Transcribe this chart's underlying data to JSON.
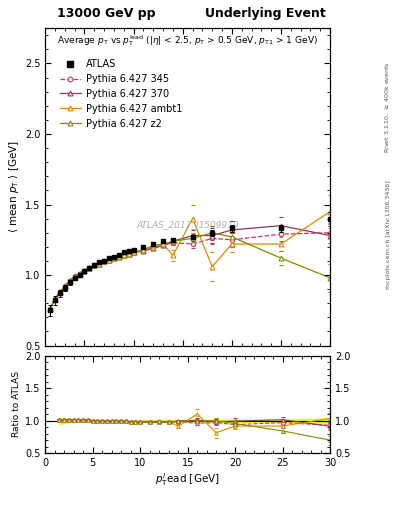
{
  "title_left": "13000 GeV pp",
  "title_right": "Underlying Event",
  "ylabel_main": "<mean p_T> [GeV]",
  "ylabel_ratio": "Ratio to ATLAS",
  "xlabel": "p_{T}^{lead} [GeV]",
  "watermark": "ATLAS_2017_I1509919",
  "ylim_main": [
    0.5,
    2.75
  ],
  "ylim_ratio": [
    0.5,
    2.0
  ],
  "yticks_main": [
    0.5,
    1.0,
    1.5,
    2.0,
    2.5
  ],
  "yticks_ratio": [
    0.5,
    1.0,
    1.5,
    2.0
  ],
  "xlim": [
    1,
    30
  ],
  "xticks": [
    0,
    5,
    10,
    15,
    20,
    25,
    30
  ],
  "atlas_x": [
    1.5,
    2.0,
    2.5,
    3.0,
    3.5,
    4.0,
    4.5,
    5.0,
    5.5,
    6.0,
    6.5,
    7.0,
    7.5,
    8.0,
    8.5,
    9.0,
    9.5,
    10.0,
    11.0,
    12.0,
    13.0,
    14.0,
    16.0,
    18.0,
    20.0,
    25.0,
    30.0
  ],
  "atlas_y": [
    0.75,
    0.82,
    0.87,
    0.91,
    0.95,
    0.98,
    1.0,
    1.03,
    1.05,
    1.07,
    1.09,
    1.1,
    1.12,
    1.13,
    1.14,
    1.16,
    1.17,
    1.18,
    1.2,
    1.22,
    1.24,
    1.25,
    1.27,
    1.3,
    1.33,
    1.33,
    1.4
  ],
  "atlas_yerr": [
    0.04,
    0.03,
    0.025,
    0.022,
    0.018,
    0.015,
    0.013,
    0.012,
    0.012,
    0.012,
    0.012,
    0.012,
    0.012,
    0.012,
    0.012,
    0.012,
    0.012,
    0.012,
    0.013,
    0.013,
    0.014,
    0.015,
    0.016,
    0.022,
    0.022,
    0.028,
    0.05
  ],
  "p345_x": [
    1.5,
    2.0,
    2.5,
    3.0,
    3.5,
    4.0,
    4.5,
    5.0,
    5.5,
    6.0,
    6.5,
    7.0,
    7.5,
    8.0,
    8.5,
    9.0,
    9.5,
    10.0,
    11.0,
    12.0,
    13.0,
    14.0,
    16.0,
    18.0,
    20.0,
    25.0,
    30.0
  ],
  "p345_y": [
    0.76,
    0.83,
    0.88,
    0.92,
    0.96,
    0.99,
    1.01,
    1.03,
    1.05,
    1.07,
    1.08,
    1.1,
    1.11,
    1.12,
    1.13,
    1.14,
    1.15,
    1.16,
    1.18,
    1.19,
    1.21,
    1.23,
    1.22,
    1.26,
    1.25,
    1.29,
    1.3
  ],
  "p370_x": [
    1.5,
    2.0,
    2.5,
    3.0,
    3.5,
    4.0,
    4.5,
    5.0,
    5.5,
    6.0,
    6.5,
    7.0,
    7.5,
    8.0,
    8.5,
    9.0,
    9.5,
    10.0,
    11.0,
    12.0,
    13.0,
    14.0,
    16.0,
    18.0,
    20.0,
    25.0,
    30.0
  ],
  "p370_y": [
    0.76,
    0.83,
    0.88,
    0.92,
    0.96,
    0.99,
    1.01,
    1.03,
    1.05,
    1.07,
    1.08,
    1.1,
    1.11,
    1.12,
    1.13,
    1.14,
    1.15,
    1.16,
    1.17,
    1.19,
    1.21,
    1.24,
    1.28,
    1.28,
    1.32,
    1.35,
    1.28
  ],
  "pambt1_x": [
    1.5,
    2.0,
    2.5,
    3.0,
    3.5,
    4.0,
    4.5,
    5.0,
    5.5,
    6.0,
    6.5,
    7.0,
    7.5,
    8.0,
    8.5,
    9.0,
    9.5,
    10.0,
    11.0,
    12.0,
    13.0,
    14.0,
    16.0,
    18.0,
    20.0,
    25.0,
    30.0
  ],
  "pambt1_y": [
    0.76,
    0.83,
    0.88,
    0.92,
    0.96,
    0.99,
    1.01,
    1.03,
    1.05,
    1.07,
    1.08,
    1.1,
    1.11,
    1.12,
    1.13,
    1.14,
    1.15,
    1.16,
    1.18,
    1.2,
    1.22,
    1.14,
    1.4,
    1.06,
    1.22,
    1.22,
    1.45
  ],
  "pambt1_yerr": [
    0.01,
    0.01,
    0.01,
    0.01,
    0.01,
    0.01,
    0.01,
    0.01,
    0.01,
    0.01,
    0.01,
    0.01,
    0.01,
    0.01,
    0.01,
    0.01,
    0.01,
    0.01,
    0.01,
    0.01,
    0.01,
    0.04,
    0.1,
    0.1,
    0.06,
    0.05,
    0.12
  ],
  "pz2_x": [
    1.5,
    2.0,
    2.5,
    3.0,
    3.5,
    4.0,
    4.5,
    5.0,
    5.5,
    6.0,
    6.5,
    7.0,
    7.5,
    8.0,
    8.5,
    9.0,
    9.5,
    10.0,
    11.0,
    12.0,
    13.0,
    14.0,
    16.0,
    18.0,
    20.0,
    25.0,
    30.0
  ],
  "pz2_y": [
    0.76,
    0.83,
    0.88,
    0.92,
    0.96,
    0.99,
    1.01,
    1.03,
    1.05,
    1.07,
    1.08,
    1.1,
    1.11,
    1.12,
    1.13,
    1.14,
    1.15,
    1.16,
    1.18,
    1.21,
    1.22,
    1.24,
    1.26,
    1.3,
    1.27,
    1.12,
    0.98
  ],
  "pz2_yerr": [
    0.01,
    0.01,
    0.01,
    0.01,
    0.01,
    0.01,
    0.01,
    0.01,
    0.01,
    0.01,
    0.01,
    0.01,
    0.01,
    0.01,
    0.01,
    0.01,
    0.01,
    0.01,
    0.01,
    0.01,
    0.01,
    0.01,
    0.03,
    0.05,
    0.05,
    0.05,
    0.1
  ],
  "p370_yerr": [
    0.01,
    0.01,
    0.01,
    0.01,
    0.01,
    0.01,
    0.01,
    0.01,
    0.01,
    0.01,
    0.01,
    0.01,
    0.01,
    0.01,
    0.01,
    0.01,
    0.01,
    0.01,
    0.01,
    0.01,
    0.01,
    0.02,
    0.04,
    0.05,
    0.06,
    0.06,
    0.08
  ],
  "p345_yerr": [
    0.01,
    0.01,
    0.01,
    0.01,
    0.01,
    0.01,
    0.01,
    0.01,
    0.01,
    0.01,
    0.01,
    0.01,
    0.01,
    0.01,
    0.01,
    0.01,
    0.01,
    0.01,
    0.01,
    0.01,
    0.01,
    0.02,
    0.03,
    0.04,
    0.05,
    0.05,
    0.07
  ],
  "color_atlas": "#000000",
  "color_p345": "#cc3366",
  "color_p370": "#993355",
  "color_pambt1": "#dd8800",
  "color_pz2": "#888800",
  "color_band": "#ffff00"
}
